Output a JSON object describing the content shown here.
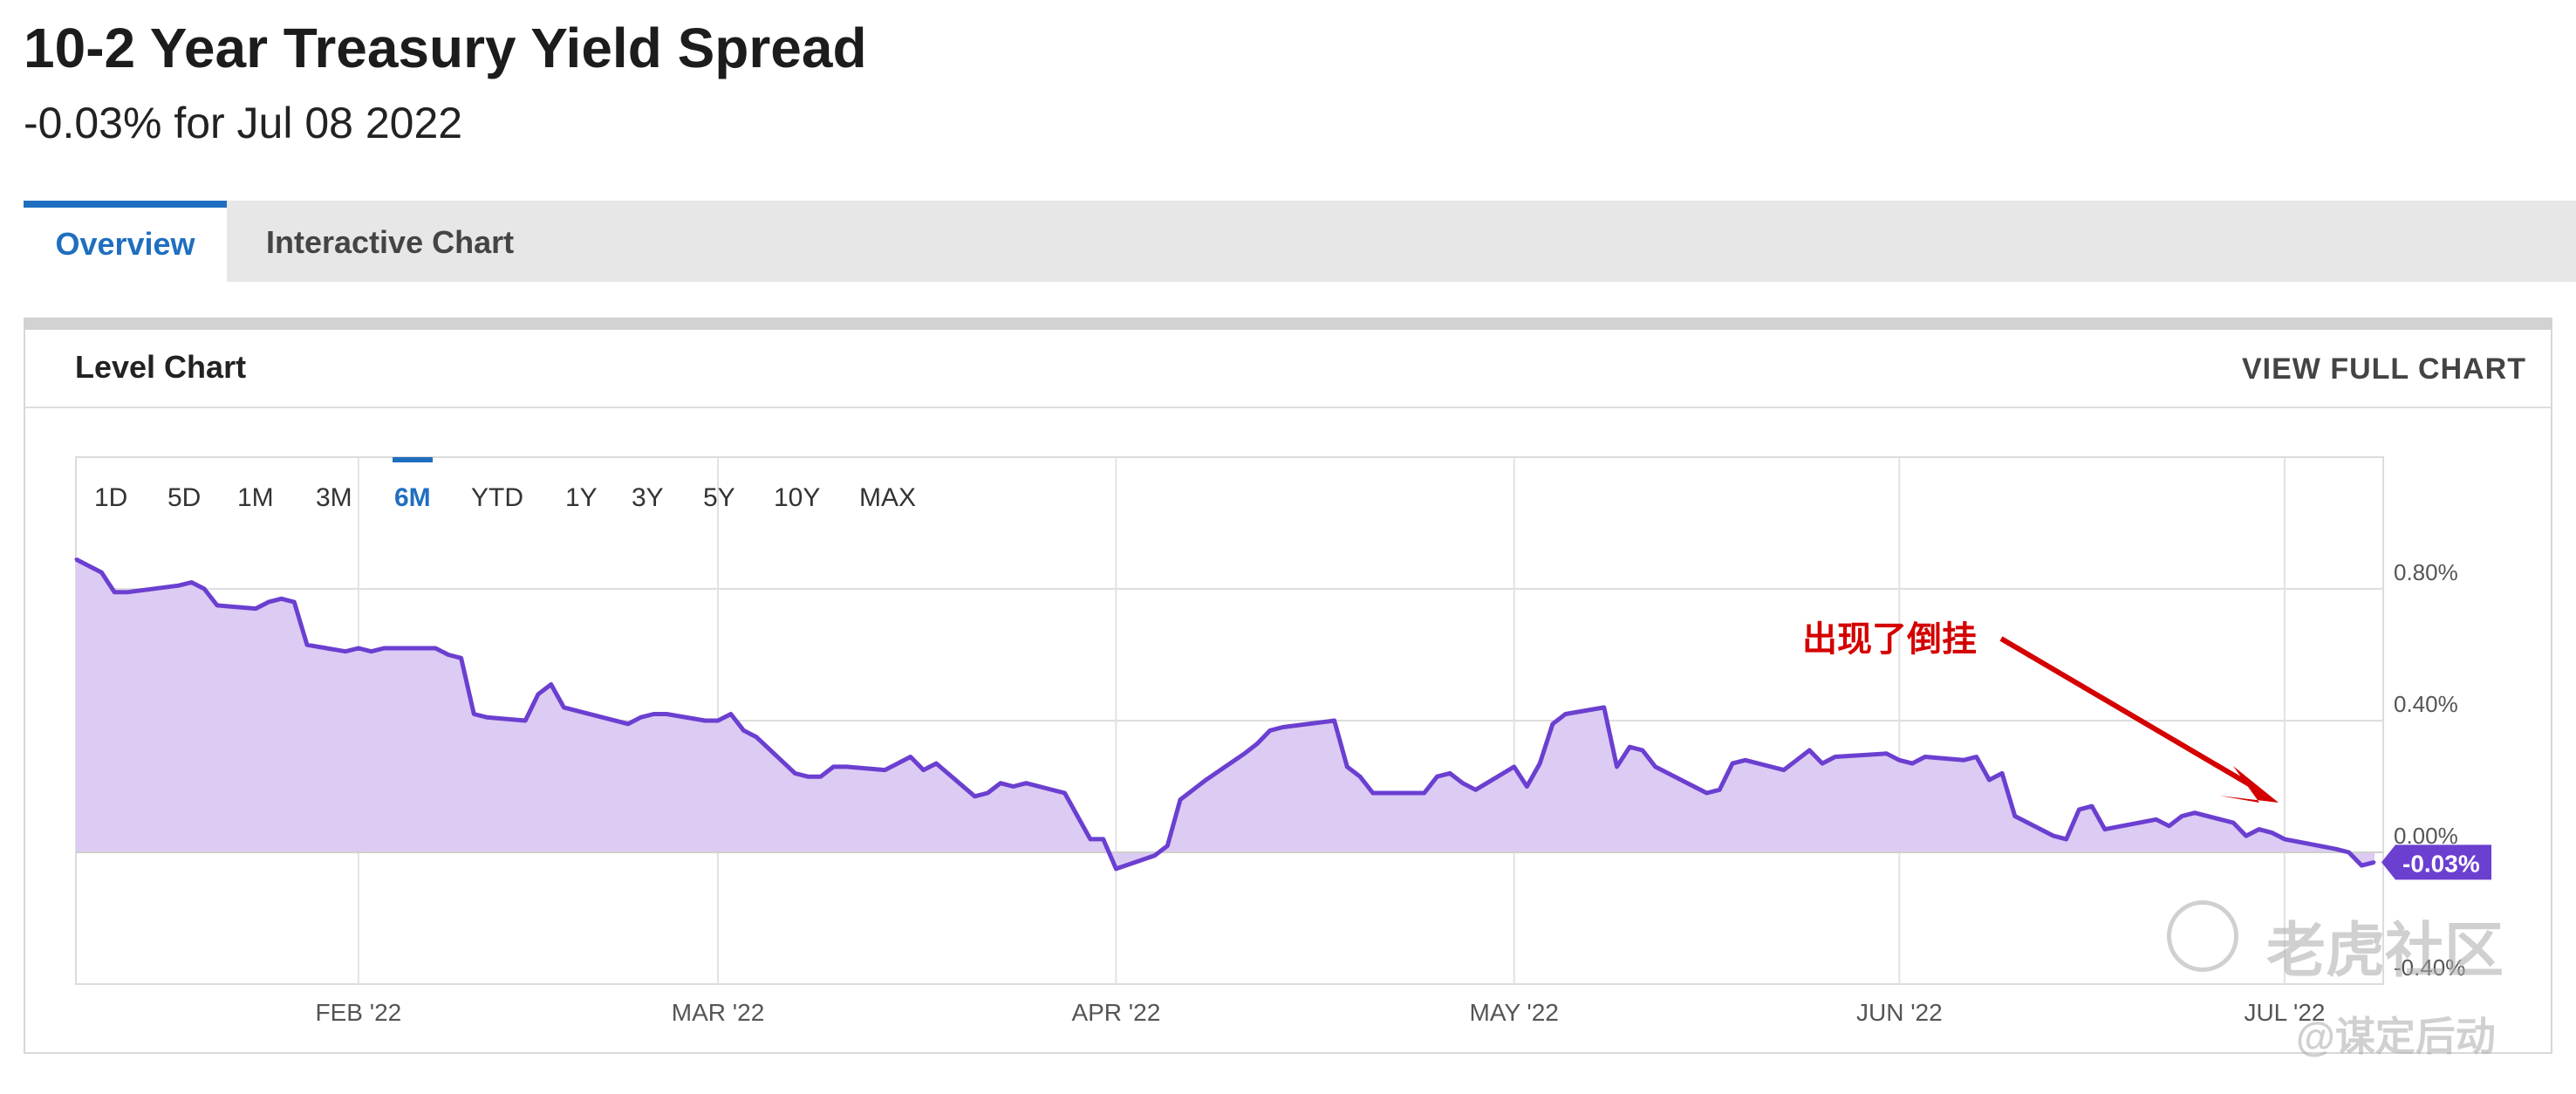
{
  "header": {
    "title": "10-2 Year Treasury Yield Spread",
    "subtitle": "-0.03% for Jul 08 2022"
  },
  "tabs": [
    {
      "label": "Overview",
      "active": true
    },
    {
      "label": "Interactive Chart",
      "active": false
    }
  ],
  "card": {
    "title": "Level Chart",
    "view_full_label": "VIEW FULL CHART"
  },
  "ranges": [
    "1D",
    "5D",
    "1M",
    "3M",
    "6M",
    "YTD",
    "1Y",
    "3Y",
    "5Y",
    "10Y",
    "MAX"
  ],
  "active_range": "6M",
  "annotation": {
    "text": "出现了倒挂",
    "color": "#d40000"
  },
  "watermark": {
    "brand": "老虎社区",
    "handle": "@谋定后动"
  },
  "colors": {
    "line": "#6b3fd0",
    "fill": "#dccbf3",
    "active_tab": "#1f6fc0",
    "badge": "#6b3fd0",
    "annotation": "#d40000"
  },
  "chart_data": {
    "type": "area",
    "x_tick_labels": [
      "FEB '22",
      "MAR '22",
      "APR '22",
      "MAY '22",
      "JUN '22",
      "JUL '22"
    ],
    "y_tick_labels": [
      "0.80%",
      "0.40%",
      "0.00%",
      "-0.40%"
    ],
    "ylim": [
      -0.4,
      1.2
    ],
    "grid": true,
    "last_value_label": "-0.03%",
    "series": [
      {
        "x": [
          "2022-01-10",
          "2022-01-11",
          "2022-01-12",
          "2022-01-13",
          "2022-01-14",
          "2022-01-18",
          "2022-01-19",
          "2022-01-20",
          "2022-01-21",
          "2022-01-24",
          "2022-01-25",
          "2022-01-26",
          "2022-01-27",
          "2022-01-28",
          "2022-01-31",
          "2022-02-01",
          "2022-02-02",
          "2022-02-03",
          "2022-02-04",
          "2022-02-07",
          "2022-02-08",
          "2022-02-09",
          "2022-02-10",
          "2022-02-11",
          "2022-02-14",
          "2022-02-15",
          "2022-02-16",
          "2022-02-17",
          "2022-02-18",
          "2022-02-22",
          "2022-02-23",
          "2022-02-24",
          "2022-02-25",
          "2022-02-28",
          "2022-03-01",
          "2022-03-02",
          "2022-03-03",
          "2022-03-04",
          "2022-03-07",
          "2022-03-08",
          "2022-03-09",
          "2022-03-10",
          "2022-03-11",
          "2022-03-14",
          "2022-03-15",
          "2022-03-16",
          "2022-03-17",
          "2022-03-18",
          "2022-03-21",
          "2022-03-22",
          "2022-03-23",
          "2022-03-24",
          "2022-03-25",
          "2022-03-28",
          "2022-03-29",
          "2022-03-30",
          "2022-03-31",
          "2022-04-01",
          "2022-04-04",
          "2022-04-05",
          "2022-04-06",
          "2022-04-07",
          "2022-04-08",
          "2022-04-11",
          "2022-04-12",
          "2022-04-13",
          "2022-04-14",
          "2022-04-18",
          "2022-04-19",
          "2022-04-20",
          "2022-04-21",
          "2022-04-22",
          "2022-04-25",
          "2022-04-26",
          "2022-04-27",
          "2022-04-28",
          "2022-04-29",
          "2022-05-02",
          "2022-05-03",
          "2022-05-04",
          "2022-05-05",
          "2022-05-06",
          "2022-05-09",
          "2022-05-10",
          "2022-05-11",
          "2022-05-12",
          "2022-05-13",
          "2022-05-16",
          "2022-05-17",
          "2022-05-18",
          "2022-05-19",
          "2022-05-20",
          "2022-05-23",
          "2022-05-24",
          "2022-05-25",
          "2022-05-26",
          "2022-05-27",
          "2022-05-31",
          "2022-06-01",
          "2022-06-02",
          "2022-06-03",
          "2022-06-06",
          "2022-06-07",
          "2022-06-08",
          "2022-06-09",
          "2022-06-10",
          "2022-06-13",
          "2022-06-14",
          "2022-06-15",
          "2022-06-16",
          "2022-06-17",
          "2022-06-21",
          "2022-06-22",
          "2022-06-23",
          "2022-06-24",
          "2022-06-27",
          "2022-06-28",
          "2022-06-29",
          "2022-06-30",
          "2022-07-01",
          "2022-07-05",
          "2022-07-06",
          "2022-07-07",
          "2022-07-08"
        ],
        "values": [
          0.89,
          0.87,
          0.85,
          0.79,
          0.79,
          0.81,
          0.82,
          0.8,
          0.75,
          0.74,
          0.76,
          0.77,
          0.76,
          0.63,
          0.61,
          0.62,
          0.61,
          0.62,
          0.62,
          0.62,
          0.6,
          0.59,
          0.42,
          0.41,
          0.4,
          0.48,
          0.51,
          0.44,
          0.43,
          0.39,
          0.41,
          0.42,
          0.42,
          0.4,
          0.4,
          0.42,
          0.37,
          0.35,
          0.24,
          0.23,
          0.23,
          0.26,
          0.26,
          0.25,
          0.27,
          0.29,
          0.25,
          0.27,
          0.17,
          0.18,
          0.21,
          0.2,
          0.21,
          0.18,
          0.11,
          0.04,
          0.04,
          -0.05,
          -0.01,
          0.02,
          0.16,
          0.19,
          0.22,
          0.3,
          0.33,
          0.37,
          0.38,
          0.4,
          0.26,
          0.23,
          0.18,
          0.18,
          0.18,
          0.23,
          0.24,
          0.21,
          0.19,
          0.26,
          0.2,
          0.27,
          0.39,
          0.42,
          0.44,
          0.26,
          0.32,
          0.31,
          0.26,
          0.2,
          0.18,
          0.19,
          0.27,
          0.28,
          0.25,
          0.28,
          0.31,
          0.27,
          0.29,
          0.3,
          0.28,
          0.27,
          0.29,
          0.28,
          0.29,
          0.22,
          0.24,
          0.11,
          0.05,
          0.04,
          0.13,
          0.14,
          0.07,
          0.1,
          0.08,
          0.11,
          0.12,
          0.09,
          0.05,
          0.07,
          0.06,
          0.04,
          0.01,
          0.0,
          -0.04,
          -0.03
        ]
      }
    ]
  }
}
